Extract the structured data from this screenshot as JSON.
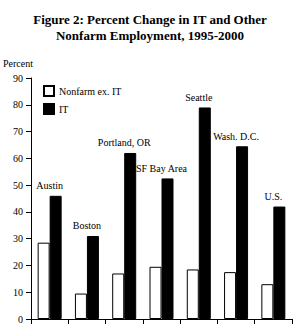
{
  "chart_data": {
    "type": "bar",
    "title": "Figure 2: Percent Change in IT and Other\nNonfarm Employment, 1995-2000",
    "y_label": "Percent",
    "categories": [
      "Austin",
      "Boston",
      "Portland, OR",
      "SF Bay Area",
      "Seattle",
      "Wash. D.C.",
      "U.S."
    ],
    "series": [
      {
        "name": "Nonfarm ex. IT",
        "color": "#ffffff",
        "values": [
          28.5,
          9.5,
          17,
          19.5,
          18.5,
          17.5,
          13
        ]
      },
      {
        "name": "IT",
        "color": "#000000",
        "values": [
          46,
          31,
          62,
          52.5,
          79,
          64.5,
          42
        ]
      }
    ],
    "ylim": [
      0,
      90
    ],
    "yticks": [
      0,
      10,
      20,
      30,
      40,
      50,
      60,
      70,
      80,
      90
    ],
    "grid": false,
    "legend": "upper left",
    "tick_labels": "y"
  }
}
